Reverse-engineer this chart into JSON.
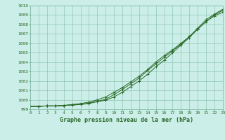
{
  "xlabel": "Graphe pression niveau de la mer (hPa)",
  "xlim": [
    0,
    23
  ],
  "ylim": [
    999,
    1010
  ],
  "yticks": [
    999,
    1000,
    1001,
    1002,
    1003,
    1004,
    1005,
    1006,
    1007,
    1008,
    1009,
    1010
  ],
  "xticks": [
    0,
    1,
    2,
    3,
    4,
    5,
    6,
    7,
    8,
    9,
    10,
    11,
    12,
    13,
    14,
    15,
    16,
    17,
    18,
    19,
    20,
    21,
    22,
    23
  ],
  "background_color": "#cceee8",
  "grid_color": "#7ab8a0",
  "line_color": "#2a6a2a",
  "line1": [
    999.3,
    999.3,
    999.35,
    999.35,
    999.4,
    999.45,
    999.5,
    999.6,
    999.8,
    999.95,
    1000.3,
    1000.8,
    1001.4,
    1002.0,
    1002.7,
    1003.5,
    1004.2,
    1005.0,
    1005.8,
    1006.6,
    1007.5,
    1008.3,
    1009.0,
    1009.5
  ],
  "line2": [
    999.3,
    999.3,
    999.35,
    999.35,
    999.4,
    999.5,
    999.6,
    999.75,
    1000.0,
    1000.3,
    1000.8,
    1001.3,
    1001.9,
    1002.5,
    1003.2,
    1004.0,
    1004.7,
    1005.3,
    1006.0,
    1006.7,
    1007.5,
    1008.3,
    1008.9,
    1009.3
  ],
  "line3": [
    999.3,
    999.3,
    999.35,
    999.35,
    999.4,
    999.45,
    999.5,
    999.65,
    999.85,
    1000.05,
    1000.55,
    1001.1,
    1001.7,
    1002.3,
    1003.1,
    1003.8,
    1004.5,
    1005.2,
    1005.9,
    1006.7,
    1007.6,
    1008.5,
    1009.1,
    1009.6
  ]
}
